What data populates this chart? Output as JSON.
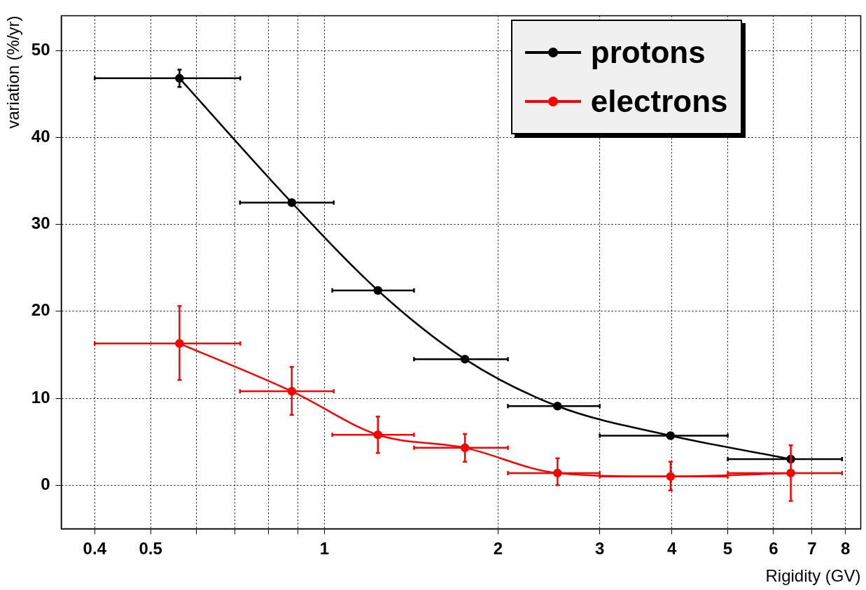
{
  "chart_data": {
    "type": "line",
    "xlabel": "Rigidity (GV)",
    "ylabel": "variation (%/yr)",
    "log": "x",
    "grid": true,
    "legend": "top right",
    "marker": "circle",
    "line_style": "solid",
    "x": [
      0.561,
      0.878,
      1.238,
      1.752,
      2.535,
      3.98,
      6.43
    ],
    "xlim": [
      0.35,
      8.5
    ],
    "xticks": [
      0.4,
      0.5,
      {
        "value": 0.6,
        "label": null
      },
      {
        "value": 0.7,
        "label": null
      },
      {
        "value": 0.8,
        "label": null
      },
      {
        "value": 0.9,
        "label": null
      },
      1,
      2,
      3,
      4,
      5,
      6,
      7,
      8
    ],
    "ylim": [
      -5,
      54
    ],
    "yticks": [
      0,
      10,
      20,
      30,
      40,
      50
    ],
    "series": [
      {
        "name": "protons",
        "color": "#000000",
        "values": [
          46.8,
          32.5,
          22.4,
          14.5,
          9.1,
          5.7,
          3.0
        ],
        "errors": [
          [
            45.8,
            47.8
          ],
          null,
          null,
          null,
          null,
          null,
          null
        ],
        "xerrors": [
          [
            0.4,
            0.715
          ],
          [
            0.714,
            1.038
          ],
          [
            1.032,
            1.43
          ],
          [
            1.43,
            2.08
          ],
          [
            2.08,
            3.0
          ],
          [
            3.0,
            5.0
          ],
          [
            5.0,
            7.89
          ]
        ]
      },
      {
        "name": "electrons",
        "color": "#ff0000",
        "values": [
          16.3,
          10.8,
          5.8,
          4.3,
          1.4,
          1.0,
          1.4
        ],
        "errors": [
          [
            12.1,
            20.6
          ],
          [
            8.1,
            13.6
          ],
          [
            3.7,
            7.9
          ],
          [
            2.7,
            5.9
          ],
          [
            0.0,
            3.1
          ],
          [
            -0.6,
            2.7
          ],
          [
            -1.8,
            4.6
          ]
        ],
        "xerrors": [
          [
            0.4,
            0.715
          ],
          [
            0.714,
            1.038
          ],
          [
            1.032,
            1.43
          ],
          [
            1.43,
            2.08
          ],
          [
            2.08,
            3.0
          ],
          [
            3.0,
            5.0
          ],
          [
            5.0,
            7.89
          ]
        ]
      }
    ]
  }
}
